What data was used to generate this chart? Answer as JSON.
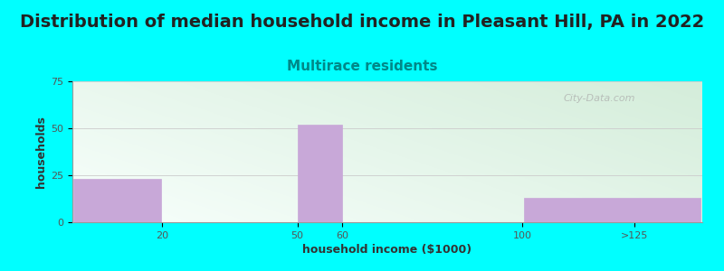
{
  "title": "Distribution of median household income in Pleasant Hill, PA in 2022",
  "subtitle": "Multirace residents",
  "categories": [
    "20",
    "50",
    "60",
    "100",
    ">125"
  ],
  "bar_lefts": [
    0,
    20,
    50,
    60,
    100
  ],
  "bar_widths": [
    20,
    30,
    10,
    40,
    40
  ],
  "values": [
    23,
    0,
    52,
    0,
    13
  ],
  "bar_color": "#C8A8D8",
  "bar_edge_color": "#C8A8D8",
  "background_color": "#00FFFF",
  "plot_bg_left": "#d4edda",
  "plot_bg_right": "#f0f8ff",
  "xlabel": "household income ($1000)",
  "ylabel": "households",
  "xlim": [
    0,
    140
  ],
  "ylim": [
    0,
    75
  ],
  "yticks": [
    0,
    25,
    50,
    75
  ],
  "xtick_positions": [
    20,
    50,
    60,
    100,
    125
  ],
  "xtick_labels": [
    "20",
    "50",
    "60",
    "100",
    ">125"
  ],
  "title_fontsize": 14,
  "subtitle_fontsize": 11,
  "subtitle_color": "#008888",
  "axis_label_fontsize": 9,
  "tick_fontsize": 8,
  "tick_color": "#555555",
  "watermark": "City-Data.com"
}
